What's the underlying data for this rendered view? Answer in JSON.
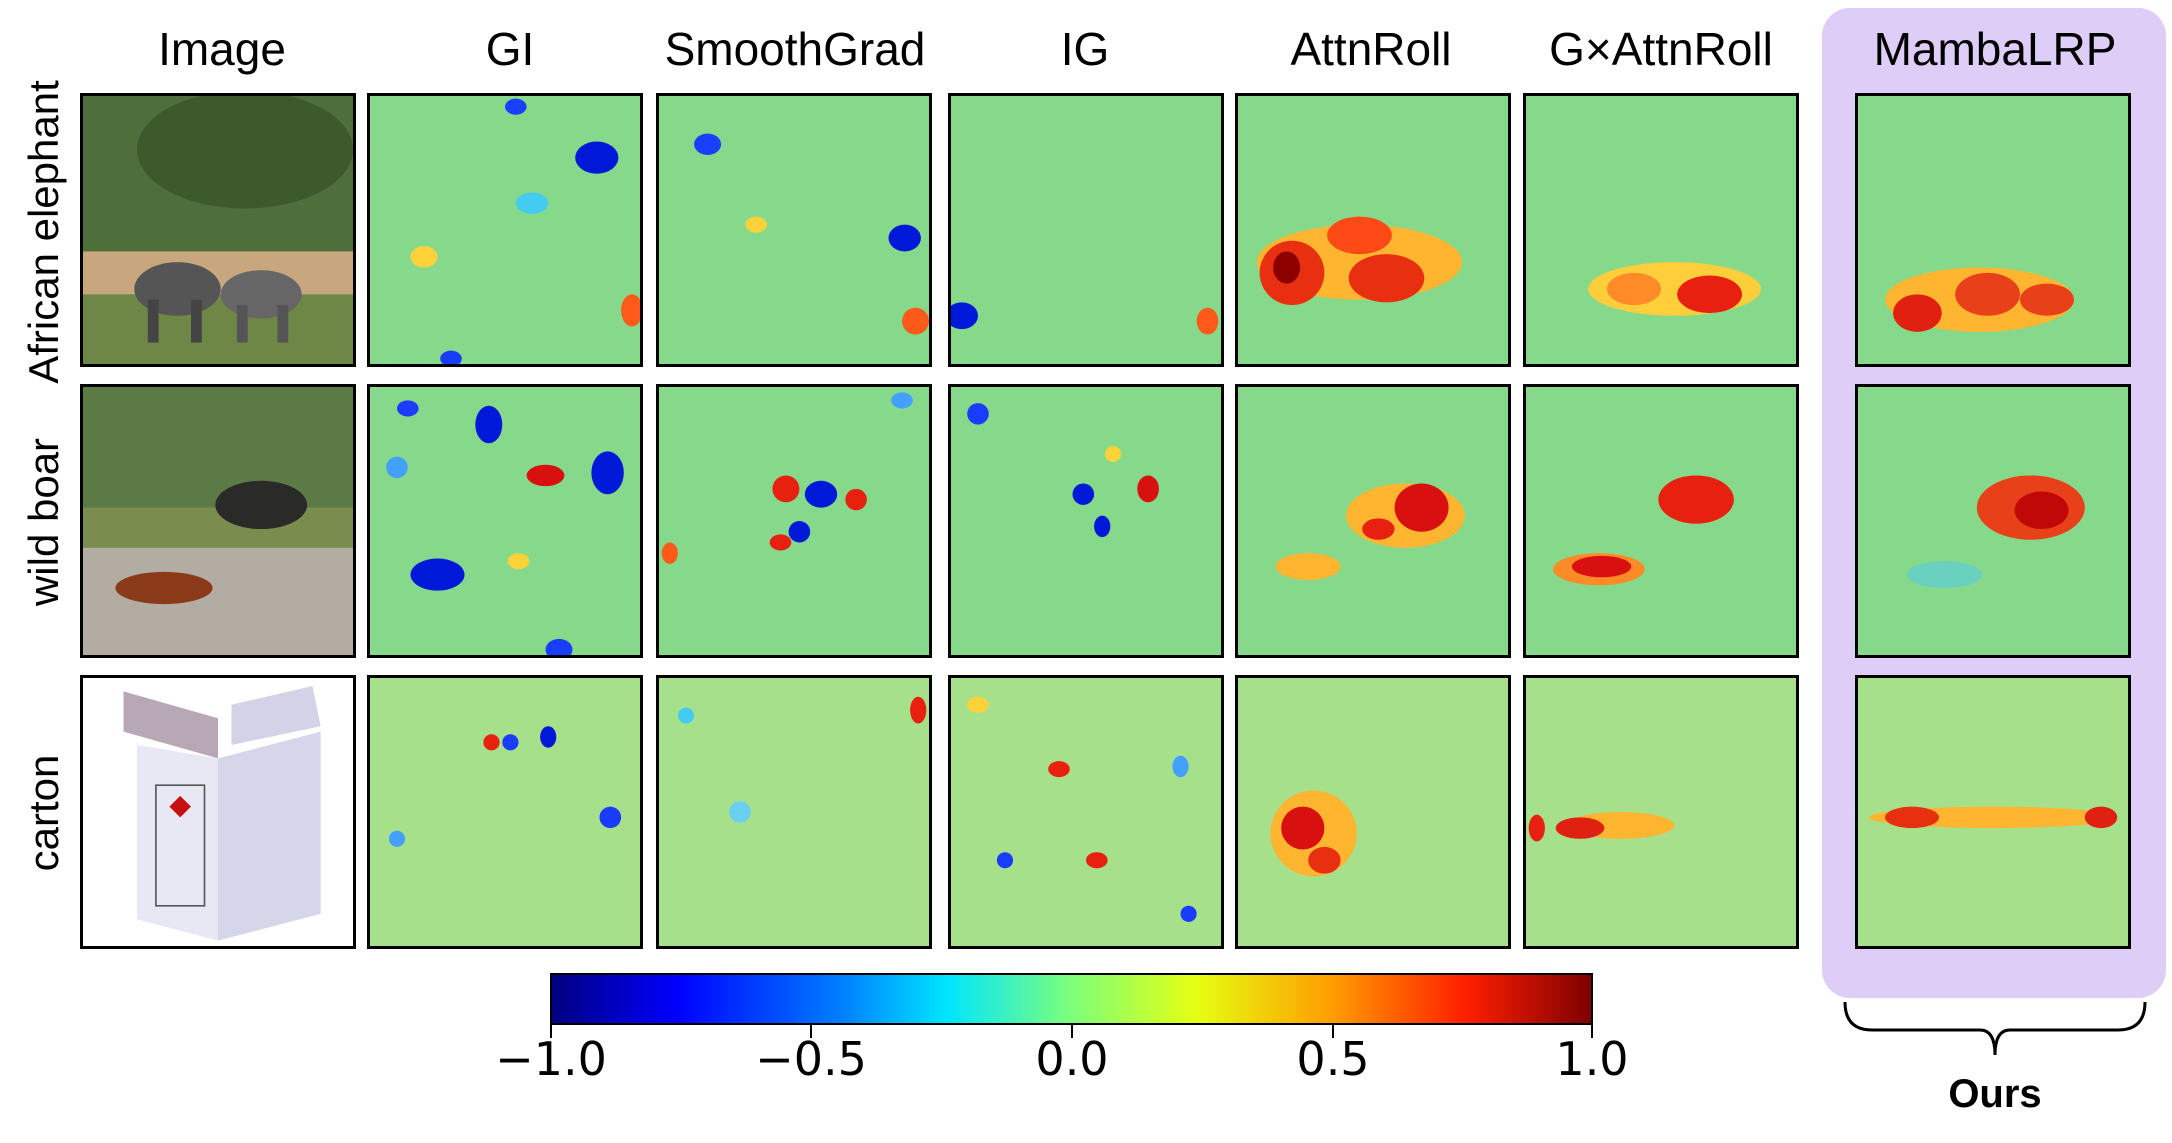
{
  "figure": {
    "column_headers": [
      "Image",
      "GI",
      "SmoothGrad",
      "IG",
      "AttnRoll",
      "G×AttnRoll",
      "MambaLRP"
    ],
    "row_labels": [
      "African elephant",
      "wild boar",
      "carton"
    ],
    "colorbar": {
      "ticks": [
        "−1.0",
        "−0.5",
        "0.0",
        "0.5",
        "1.0"
      ],
      "range": [
        -1.0,
        1.0
      ]
    },
    "ours_label": "Ours"
  }
}
